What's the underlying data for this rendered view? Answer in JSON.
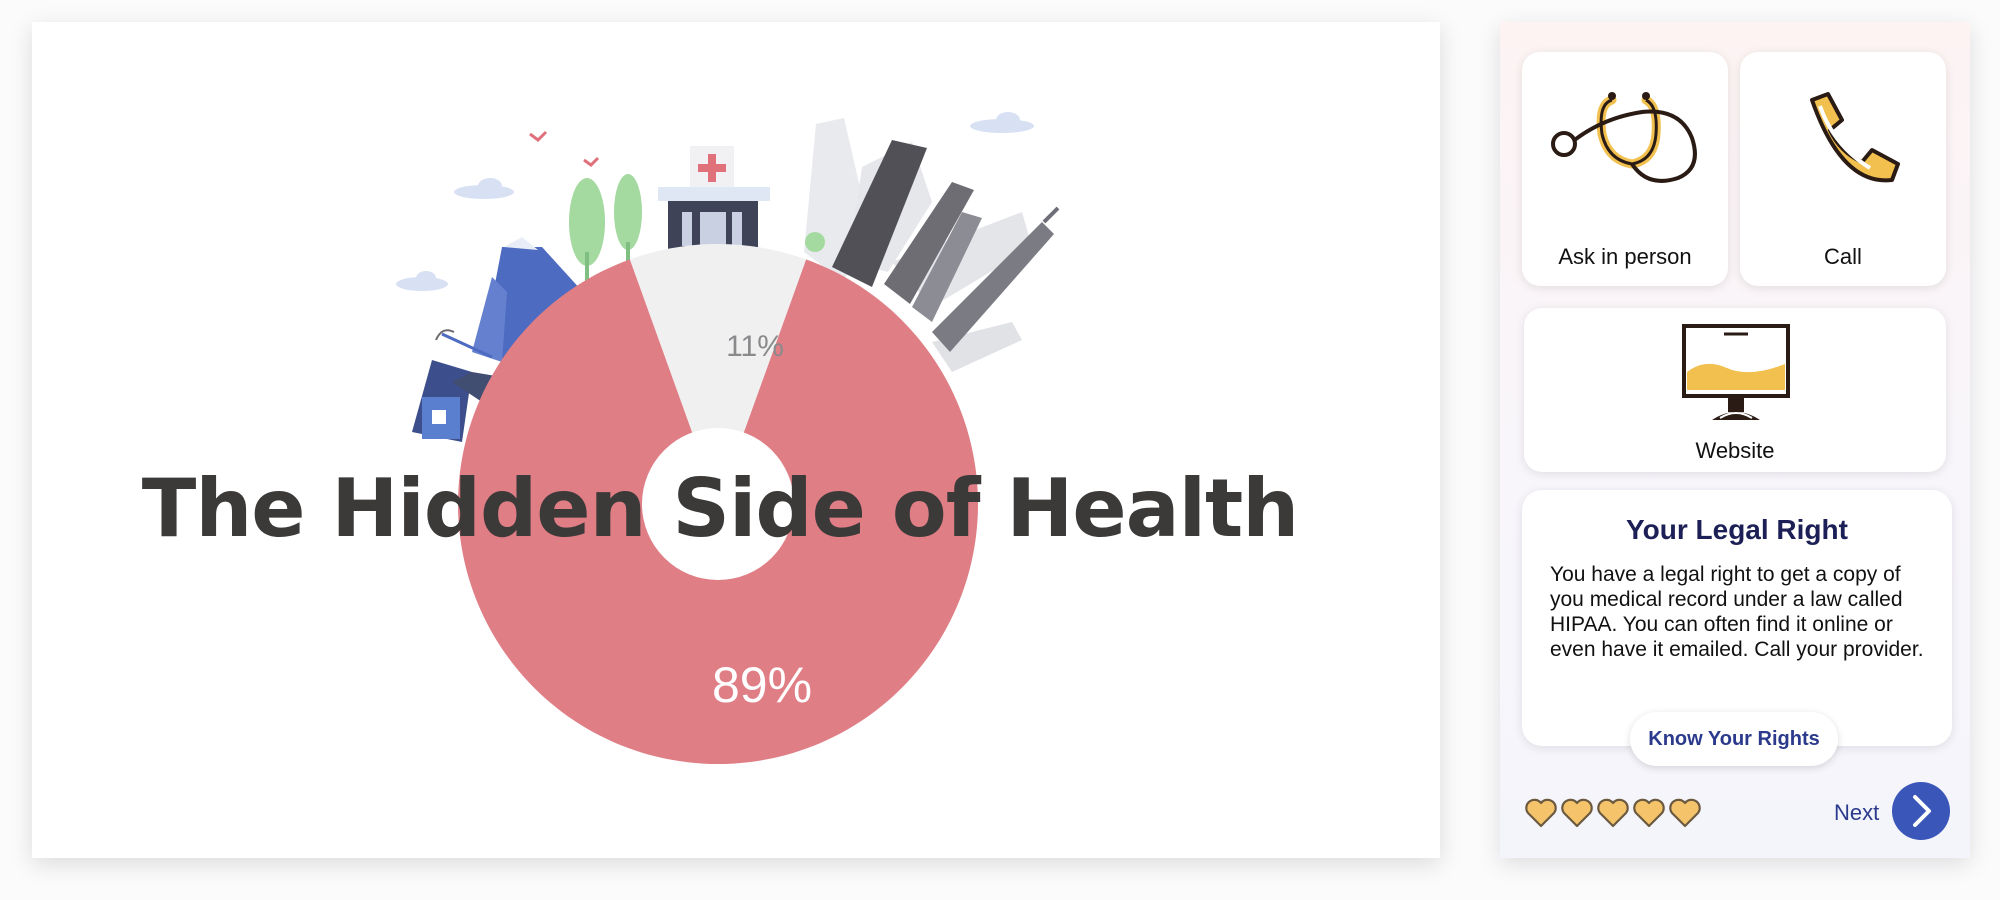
{
  "hero": {
    "title": "The Hidden Side of Health",
    "chart_data": {
      "type": "pie",
      "categories": [
        "",
        ""
      ],
      "values": [
        89,
        11
      ],
      "labels": [
        "89%",
        "11%"
      ],
      "colors": [
        "#e07e86",
        "#f0f0f1"
      ]
    },
    "illustration_icons": [
      "hospital-icon",
      "skyscraper-icon",
      "mountain-icon",
      "tree-icon",
      "house-icon",
      "bird-icon",
      "cloud-icon"
    ]
  },
  "sidebar": {
    "options": [
      {
        "label": "Ask in person",
        "icon": "stethoscope-icon"
      },
      {
        "label": "Call",
        "icon": "phone-icon"
      },
      {
        "label": "Website",
        "icon": "monitor-icon"
      }
    ],
    "legal": {
      "title": "Your Legal Right",
      "body": "You have a legal right to get a copy of you medical record under a law called HIPAA. You can often find it online or even have it emailed. Call your provider."
    },
    "rights_button": "Know Your Rights",
    "hearts": {
      "count": 5,
      "filled": 5,
      "color": "#f5c46a"
    },
    "next_label": "Next",
    "colors": {
      "accent": "#3a56b8",
      "title": "#1d2056",
      "link": "#2b3a8c"
    }
  }
}
